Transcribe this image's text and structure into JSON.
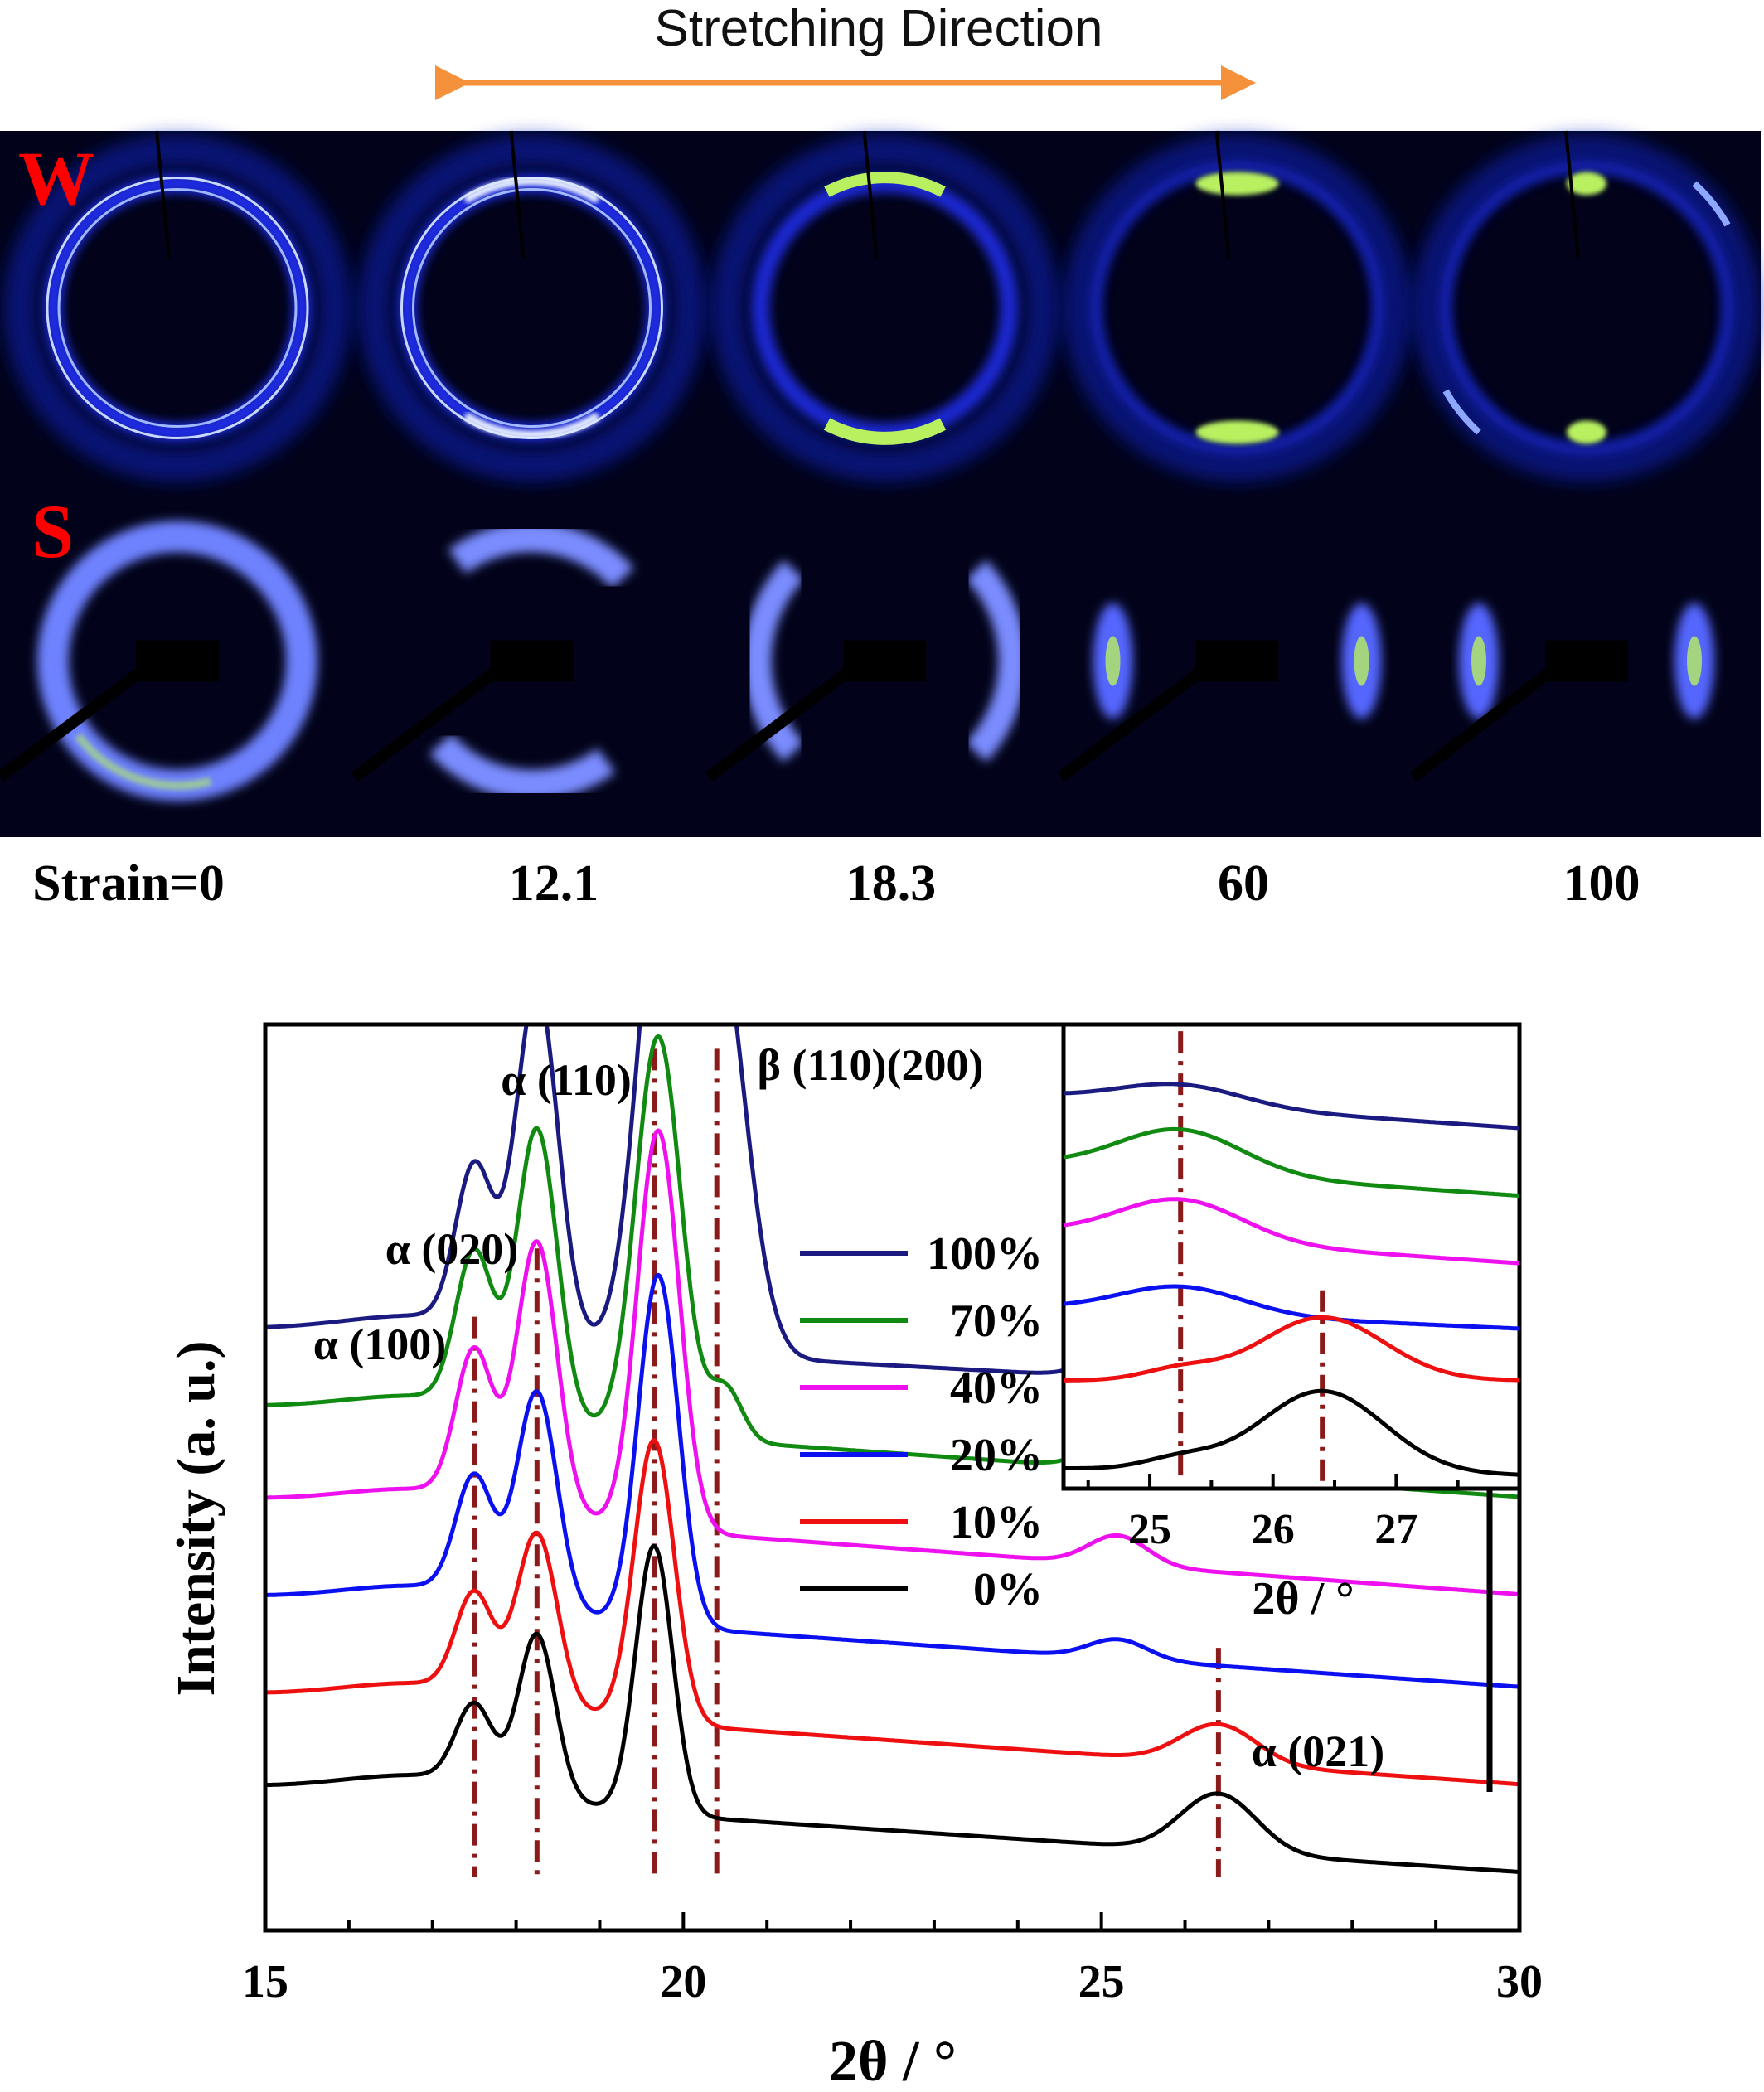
{
  "header": {
    "title": "Stretching Direction",
    "arrow_color": "#F5913A"
  },
  "patterns": {
    "waxs_label": "W",
    "saxs_label": "S",
    "label_color": "#FF0000",
    "strain_labels": [
      "Strain=0",
      "12.1",
      "18.3",
      "60",
      "100"
    ],
    "background_color": "#02031A",
    "ring_color": "#2233FF",
    "hot_color": "#B8F060"
  },
  "chart_data": [
    {
      "type": "line",
      "xlabel": "2θ / °",
      "ylabel": "Intensity (a. u.)",
      "xlim": [
        15,
        30
      ],
      "xticks": [
        15,
        20,
        25,
        30
      ],
      "series": [
        {
          "name": "100%",
          "color": "#1A1A80",
          "baseline": 6.0,
          "start": 6.15,
          "end": 5.45,
          "peaks": [
            [
              17.5,
              1.6,
              0.22
            ],
            [
              18.25,
              3.55,
              0.25
            ],
            [
              19.75,
              4.85,
              0.3
            ],
            [
              20.4,
              4.25,
              0.34
            ],
            [
              25.2,
              0.25,
              0.35
            ]
          ]
        },
        {
          "name": "70%",
          "color": "#118A11",
          "baseline": 5.0,
          "start": 5.35,
          "end": 4.45,
          "peaks": [
            [
              17.5,
              1.55,
              0.22
            ],
            [
              18.25,
              2.95,
              0.24
            ],
            [
              19.7,
              4.1,
              0.27
            ],
            [
              20.5,
              0.55,
              0.2
            ],
            [
              25.2,
              0.3,
              0.35
            ]
          ]
        },
        {
          "name": "40%",
          "color": "#EE10EE",
          "baseline": 4.0,
          "start": 4.4,
          "end": 3.45,
          "peaks": [
            [
              17.5,
              1.5,
              0.22
            ],
            [
              18.25,
              2.75,
              0.24
            ],
            [
              19.7,
              4.1,
              0.25
            ],
            [
              25.2,
              0.3,
              0.35
            ]
          ]
        },
        {
          "name": "20%",
          "color": "#0A10F0",
          "baseline": 3.0,
          "start": 3.4,
          "end": 2.5,
          "peaks": [
            [
              17.5,
              1.2,
              0.22
            ],
            [
              18.25,
              2.2,
              0.24
            ],
            [
              19.7,
              3.6,
              0.24
            ],
            [
              25.2,
              0.2,
              0.35
            ]
          ]
        },
        {
          "name": "10%",
          "color": "#EE1010",
          "baseline": 2.0,
          "start": 2.4,
          "end": 1.5,
          "peaks": [
            [
              17.5,
              1.0,
              0.22
            ],
            [
              18.25,
              1.75,
              0.24
            ],
            [
              19.65,
              2.9,
              0.24
            ],
            [
              26.4,
              0.4,
              0.45
            ]
          ]
        },
        {
          "name": "0%",
          "color": "#000000",
          "baseline": 1.0,
          "start": 1.45,
          "end": 0.6,
          "peaks": [
            [
              17.5,
              0.8,
              0.22
            ],
            [
              18.25,
              1.65,
              0.22
            ],
            [
              19.65,
              2.75,
              0.22
            ],
            [
              26.4,
              0.6,
              0.45
            ]
          ]
        }
      ],
      "reference_lines_x": [
        17.5,
        18.25,
        19.65,
        20.4,
        26.4
      ],
      "reference_color": "#8B1A1A",
      "annotations": [
        "α (100)",
        "α (020)",
        "α (110)",
        "β (110)(200)",
        "α (021)"
      ],
      "legend_position": "right-center"
    },
    {
      "type": "line",
      "role": "inset",
      "xlabel": "2θ / °",
      "xlim": [
        24.3,
        28.0
      ],
      "xticks": [
        25,
        26,
        27
      ],
      "series_peaks": [
        {
          "name": "100%",
          "start": 8.7,
          "end": 8.0,
          "peak_x": 25.25,
          "peak_h": 0.45
        },
        {
          "name": "70%",
          "start": 7.2,
          "end": 6.5,
          "peak_x": 25.25,
          "peak_h": 0.95
        },
        {
          "name": "40%",
          "start": 5.7,
          "end": 5.0,
          "peak_x": 25.25,
          "peak_h": 0.9
        },
        {
          "name": "20%",
          "start": 4.0,
          "end": 3.55,
          "peak_x": 25.25,
          "peak_h": 0.6
        },
        {
          "name": "10%",
          "start": 2.4,
          "end": 2.4,
          "peak_x": 26.4,
          "peak_h": 1.4
        },
        {
          "name": "0%",
          "start": 0.45,
          "end": 0.3,
          "peak_x": 26.4,
          "peak_h": 1.8
        }
      ],
      "reference_lines_x": [
        25.25,
        26.4
      ]
    }
  ]
}
